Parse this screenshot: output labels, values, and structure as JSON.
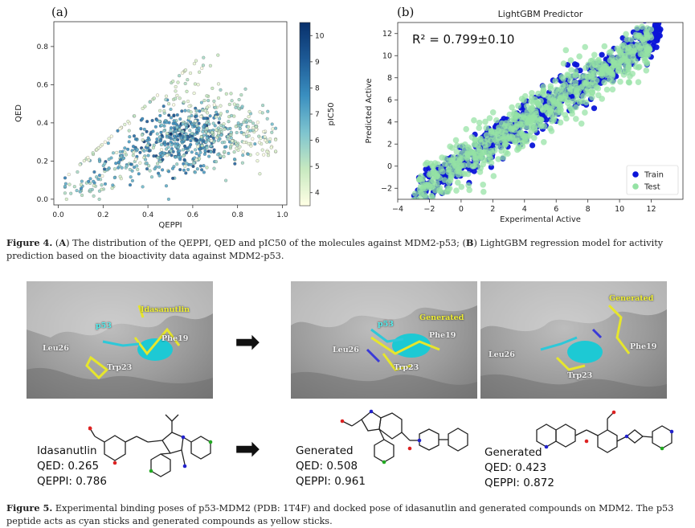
{
  "figure4": {
    "panel_a_label": "(a)",
    "panel_b_label": "(b)",
    "caption_prefix": "Figure 4.",
    "caption_parts": [
      "(",
      "A",
      ") The distribution of the QEPPI, QED and pIC50 of the molecules against MDM2-p53; (",
      "B",
      ") LightGBM regression model for activity prediction based on the bioactivity data against MDM2-p53."
    ]
  },
  "chart_data": [
    {
      "type": "scatter",
      "title": "",
      "xlabel": "QEPPI",
      "ylabel": "QED",
      "colorbar_label": "pIC50",
      "xlim": [
        -0.02,
        1.02
      ],
      "ylim": [
        -0.03,
        0.93
      ],
      "xticks": [
        "0.0",
        "0.2",
        "0.4",
        "0.6",
        "0.8",
        "1.0"
      ],
      "xtick_values": [
        0.0,
        0.2,
        0.4,
        0.6,
        0.8,
        1.0
      ],
      "yticks": [
        "0.0",
        "0.2",
        "0.4",
        "0.6",
        "0.8"
      ],
      "ytick_values": [
        0.0,
        0.2,
        0.4,
        0.6,
        0.8
      ],
      "colorbar_range": [
        3.5,
        10.5
      ],
      "colorbar_ticks": [
        "4",
        "5",
        "6",
        "7",
        "8",
        "9",
        "10"
      ],
      "colorbar_tick_values": [
        4,
        5,
        6,
        7,
        8,
        9,
        10
      ],
      "colormap_stops": [
        "#ffffe5",
        "#c7e9c0",
        "#7ec4cf",
        "#3a8fc0",
        "#1d5a96",
        "#08306b"
      ],
      "clusters": [
        {
          "x": 0.55,
          "y": 0.32,
          "sx": 0.1,
          "sy": 0.08,
          "n": 380,
          "c": 7.6,
          "cs": 1.1
        },
        {
          "x": 0.75,
          "y": 0.36,
          "sx": 0.1,
          "sy": 0.09,
          "n": 170,
          "c": 5.4,
          "cs": 0.9
        },
        {
          "x": 0.3,
          "y": 0.2,
          "sx": 0.09,
          "sy": 0.06,
          "n": 110,
          "c": 6.4,
          "cs": 1.2
        },
        {
          "x": 0.62,
          "y": 0.55,
          "sx": 0.12,
          "sy": 0.12,
          "n": 70,
          "c": 4.6,
          "cs": 0.7
        },
        {
          "x": 0.22,
          "y": 0.45,
          "sx": 0.1,
          "sy": 0.15,
          "n": 25,
          "c": 4.2,
          "cs": 0.5
        },
        {
          "x": 0.12,
          "y": 0.06,
          "sx": 0.06,
          "sy": 0.03,
          "n": 40,
          "c": 5.8,
          "cs": 1.0
        },
        {
          "x": 0.9,
          "y": 0.3,
          "sx": 0.05,
          "sy": 0.07,
          "n": 40,
          "c": 4.0,
          "cs": 0.4
        }
      ]
    },
    {
      "type": "scatter",
      "title": "LightGBM Predictor",
      "xlabel": "Experimental Active",
      "ylabel": "Predicted Active",
      "annotation": "R² = 0.799±0.10",
      "xlim": [
        -4,
        14
      ],
      "ylim": [
        -3,
        13
      ],
      "xticks": [
        "−4",
        "−2",
        "0",
        "2",
        "4",
        "6",
        "8",
        "10",
        "12"
      ],
      "xtick_values": [
        -4,
        -2,
        0,
        2,
        4,
        6,
        8,
        10,
        12
      ],
      "yticks": [
        "−2",
        "0",
        "2",
        "4",
        "6",
        "8",
        "10",
        "12"
      ],
      "ytick_values": [
        -2,
        0,
        2,
        4,
        6,
        8,
        10,
        12
      ],
      "legend_position": "bottom-right",
      "series": [
        {
          "name": "Train",
          "color": "#0a14d8",
          "n": 650,
          "x_range": [
            -3,
            12.6
          ],
          "noise": 0.85
        },
        {
          "name": "Test",
          "color": "#94e2a4",
          "n": 650,
          "x_range": [
            -3,
            12
          ],
          "noise": 1.15
        }
      ]
    }
  ],
  "figure5": {
    "arrow_symbol": "➡",
    "poses": [
      {
        "labels": {
          "p53": "p53",
          "leu26": "Leu26",
          "trp23": "Trp23",
          "phe19": "Phe19",
          "top": "Idasanutlin"
        }
      },
      {
        "labels": {
          "p53": "p53",
          "leu26": "Leu26",
          "trp23": "Trp23",
          "phe19": "Phe19",
          "top": "Generated"
        }
      },
      {
        "labels": {
          "leu26": "Leu26",
          "trp23": "Trp23",
          "phe19": "Phe19",
          "top": "Generated"
        }
      }
    ],
    "molecules": [
      {
        "name": "Idasanutlin",
        "qed": "QED: 0.265",
        "qeppi": "QEPPI: 0.786"
      },
      {
        "name": "Generated",
        "qed": "QED: 0.508",
        "qeppi": "QEPPI: 0.961"
      },
      {
        "name": "Generated",
        "qed": "QED: 0.423",
        "qeppi": "QEPPI: 0.872"
      }
    ],
    "caption_prefix": "Figure 5.",
    "caption_text": "Experimental binding poses of p53-MDM2 (PDB: 1T4F) and docked pose of idasanutlin and generated compounds on MDM2. The p53 peptide acts as cyan sticks and generated compounds as yellow sticks."
  }
}
